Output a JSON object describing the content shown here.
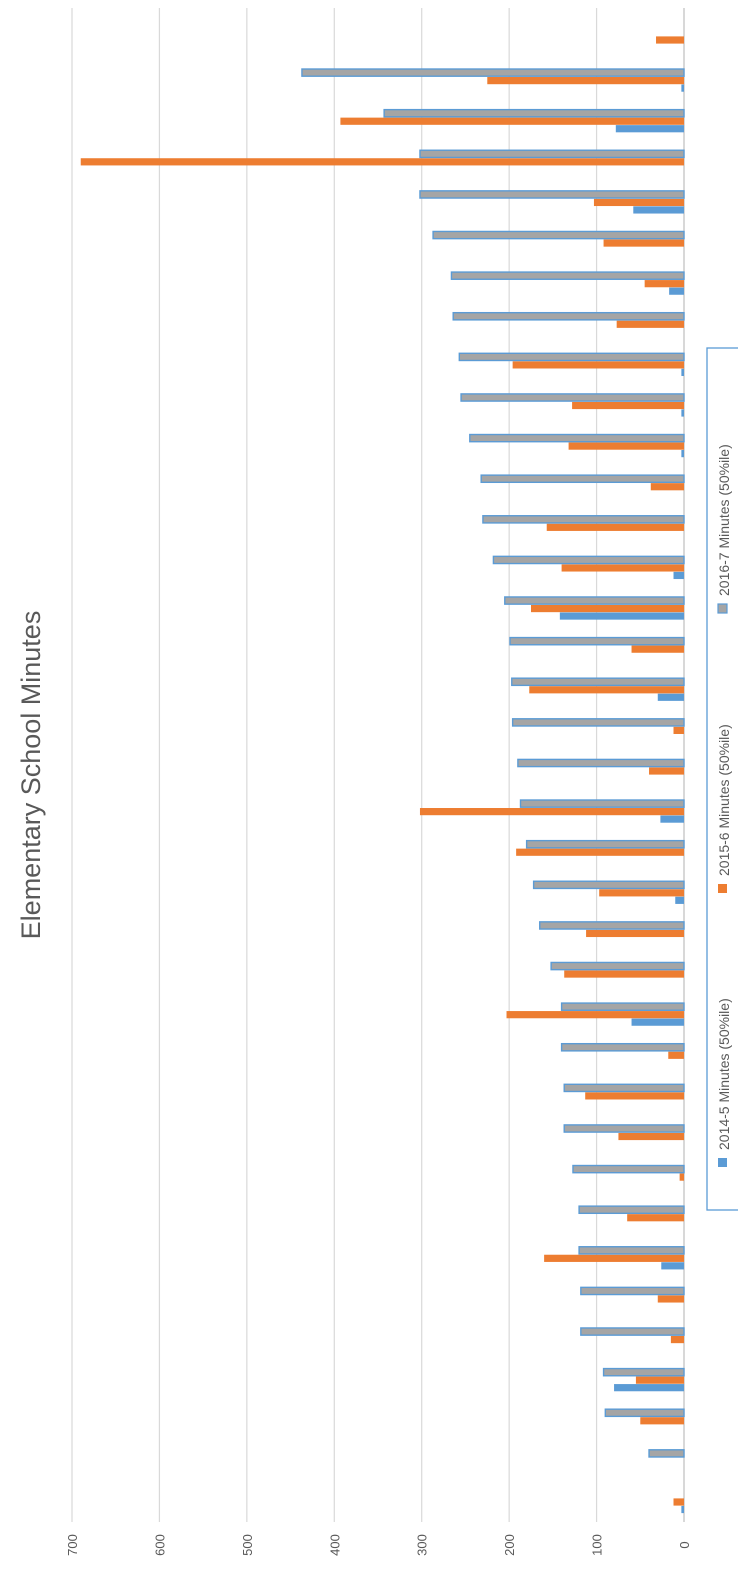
{
  "chart_data": {
    "type": "bar",
    "orientation": "horizontal",
    "title": "Elementary School Minutes",
    "xlim": [
      0,
      700
    ],
    "ticks": [
      "0",
      "100",
      "200",
      "300",
      "400",
      "500",
      "600",
      "700"
    ],
    "grid": true,
    "legend_position": "right",
    "series": [
      {
        "name": "2014-5 Minutes (50%ile)",
        "color": "#5b9bd5",
        "values": [
          3,
          0,
          0,
          80,
          0,
          0,
          26,
          0,
          0,
          0,
          0,
          0,
          60,
          0,
          0,
          10,
          0,
          27,
          0,
          0,
          30,
          0,
          142,
          12,
          0,
          0,
          3,
          3,
          3,
          0,
          17,
          0,
          58,
          0,
          78,
          3,
          0
        ]
      },
      {
        "name": "2015-6 Minutes (50%ile)",
        "color": "#ed7d31",
        "values": [
          12,
          0,
          50,
          55,
          15,
          30,
          160,
          65,
          5,
          75,
          113,
          18,
          203,
          137,
          112,
          97,
          192,
          302,
          40,
          12,
          177,
          60,
          175,
          140,
          157,
          38,
          132,
          128,
          196,
          77,
          45,
          92,
          103,
          690,
          393,
          225,
          32
        ]
      },
      {
        "name": "2016-7 Minutes (50%ile)",
        "color": "#a5a5a5",
        "border": "#5b9bd5",
        "values": [
          0,
          40,
          90,
          92,
          118,
          118,
          120,
          120,
          127,
          137,
          137,
          140,
          140,
          152,
          165,
          172,
          180,
          187,
          190,
          196,
          197,
          199,
          205,
          218,
          230,
          232,
          245,
          255,
          257,
          264,
          266,
          287,
          302,
          302,
          343,
          437,
          0
        ]
      }
    ]
  }
}
